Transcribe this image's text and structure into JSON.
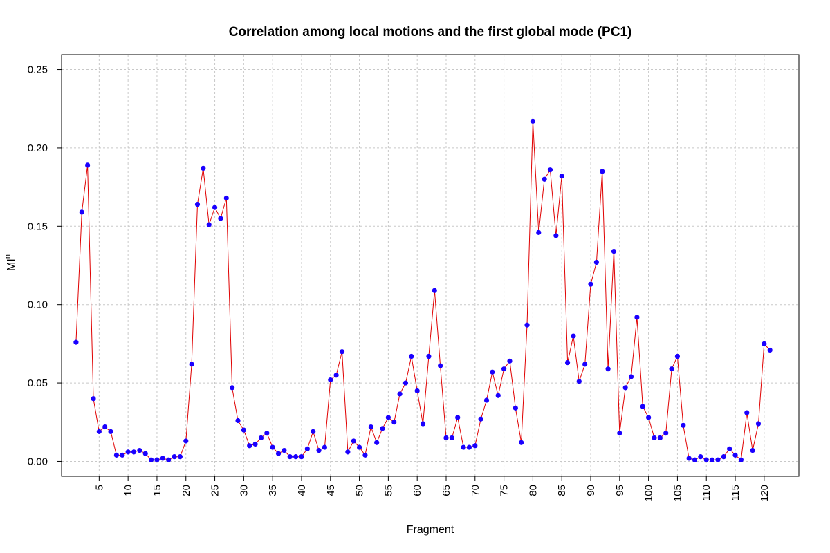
{
  "chart_data": {
    "type": "line",
    "title": "Correlation among local motions and the first global mode (PC1)",
    "xlabel": "Fragment",
    "ylabel": "MI",
    "ylabel_superscript": "n",
    "xlim": [
      -1.5,
      126
    ],
    "ylim": [
      -0.0095,
      0.2595
    ],
    "xticks": [
      5,
      10,
      15,
      20,
      25,
      30,
      35,
      40,
      45,
      50,
      55,
      60,
      65,
      70,
      75,
      80,
      85,
      90,
      95,
      100,
      105,
      110,
      115,
      120
    ],
    "yticks": [
      0,
      0.05,
      0.1,
      0.15,
      0.2,
      0.25
    ],
    "ytick_labels": [
      "0.00",
      "0.05",
      "0.10",
      "0.15",
      "0.20",
      "0.25"
    ],
    "grid": true,
    "line_color": "#e00000",
    "marker_color": "#1a00ff",
    "series": [
      {
        "x": [
          1,
          2,
          3,
          4,
          5,
          6,
          7,
          8,
          9,
          10,
          11,
          12,
          13,
          14,
          15,
          16,
          17,
          18,
          19,
          20,
          21,
          22,
          23,
          24,
          25,
          26,
          27,
          28,
          29,
          30,
          31,
          32,
          33,
          34,
          35,
          36,
          37,
          38,
          39,
          40,
          41,
          42,
          43,
          44,
          45,
          46,
          47,
          48,
          49,
          50,
          51,
          52,
          53,
          54,
          55,
          56,
          57,
          58,
          59,
          60,
          61,
          62,
          63,
          64,
          65,
          66,
          67,
          68,
          69,
          70,
          71,
          72,
          73,
          74,
          75,
          76,
          77,
          78,
          79,
          80,
          81,
          82,
          83,
          84,
          85,
          86,
          87,
          88,
          89,
          90,
          91,
          92,
          93,
          94,
          95,
          96,
          97,
          98,
          99,
          100,
          101,
          102,
          103,
          104,
          105,
          106,
          107,
          108,
          109,
          110,
          111,
          112,
          113,
          114,
          115,
          116,
          117,
          118,
          119,
          120,
          121
        ],
        "values": [
          0.076,
          0.159,
          0.189,
          0.04,
          0.019,
          0.022,
          0.019,
          0.004,
          0.004,
          0.006,
          0.006,
          0.007,
          0.005,
          0.001,
          0.001,
          0.002,
          0.001,
          0.003,
          0.003,
          0.013,
          0.062,
          0.164,
          0.187,
          0.151,
          0.162,
          0.155,
          0.168,
          0.047,
          0.026,
          0.02,
          0.01,
          0.011,
          0.015,
          0.018,
          0.009,
          0.005,
          0.007,
          0.003,
          0.003,
          0.003,
          0.008,
          0.019,
          0.007,
          0.009,
          0.052,
          0.055,
          0.07,
          0.006,
          0.013,
          0.009,
          0.004,
          0.022,
          0.012,
          0.021,
          0.028,
          0.025,
          0.043,
          0.05,
          0.067,
          0.045,
          0.024,
          0.067,
          0.109,
          0.061,
          0.015,
          0.015,
          0.028,
          0.009,
          0.009,
          0.01,
          0.027,
          0.039,
          0.057,
          0.042,
          0.059,
          0.064,
          0.034,
          0.012,
          0.087,
          0.217,
          0.146,
          0.18,
          0.186,
          0.144,
          0.182,
          0.063,
          0.08,
          0.051,
          0.062,
          0.113,
          0.127,
          0.185,
          0.059,
          0.134,
          0.018,
          0.047,
          0.054,
          0.092,
          0.035,
          0.028,
          0.015,
          0.015,
          0.018,
          0.059,
          0.067,
          0.023,
          0.002,
          0.001,
          0.003,
          0.001,
          0.001,
          0.001,
          0.003,
          0.008,
          0.004,
          0.001,
          0.031,
          0.007,
          0.024,
          0.075,
          0.071
        ]
      }
    ]
  }
}
